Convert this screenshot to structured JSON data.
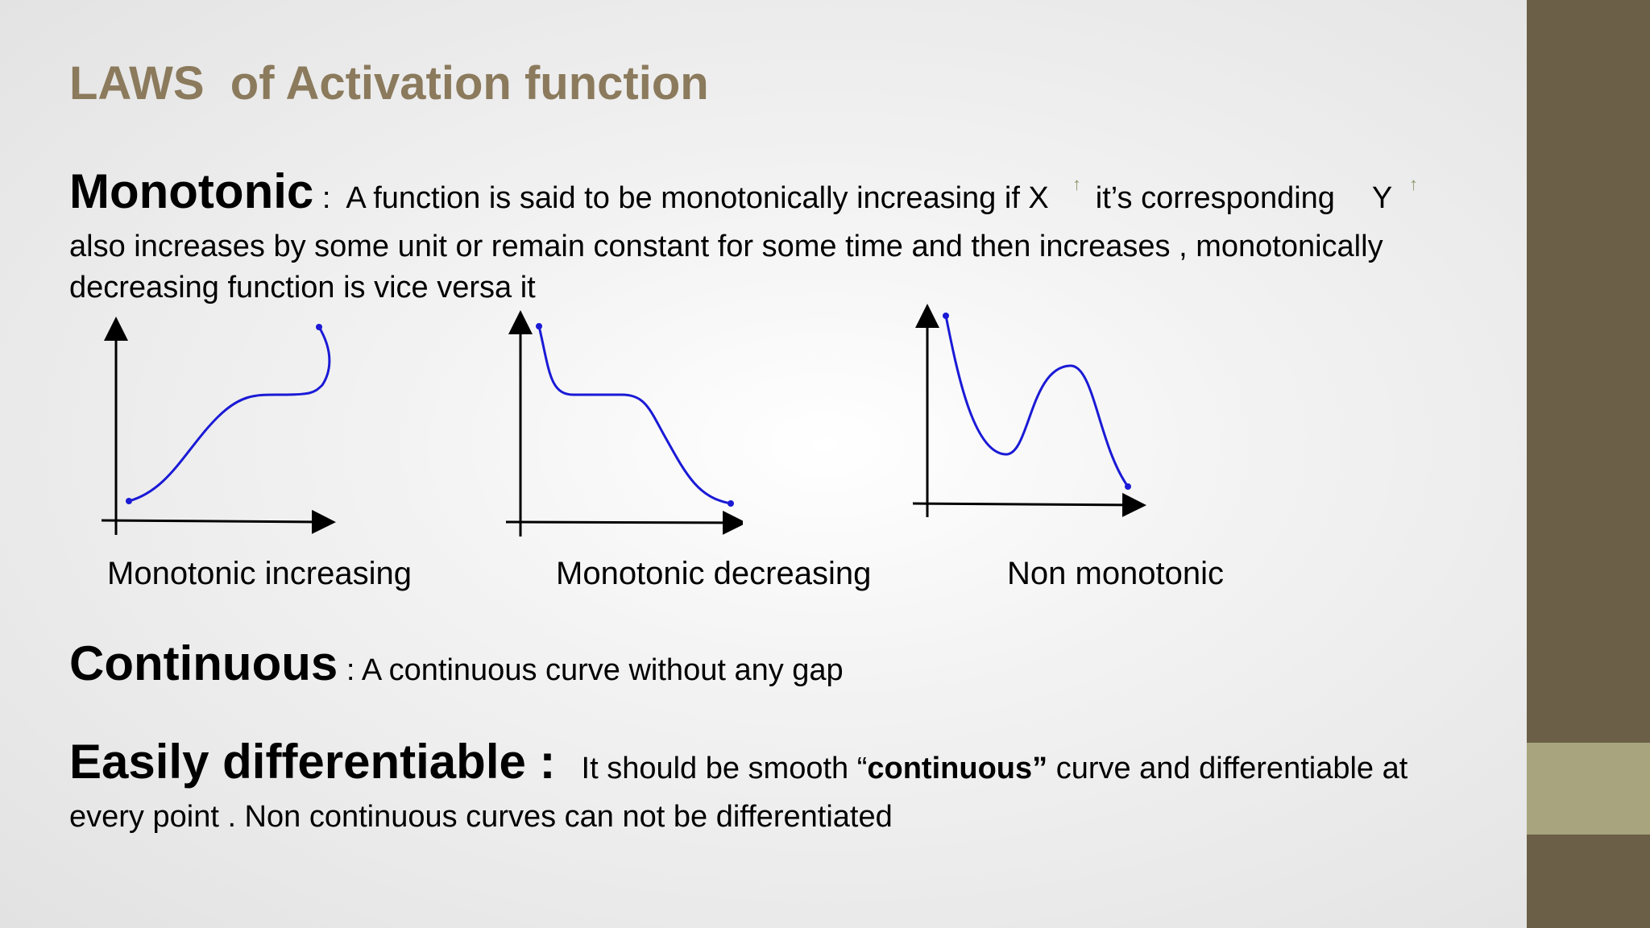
{
  "title": "LAWS  of Activation function",
  "monotonic": {
    "term": "Monotonic",
    "sep": " :  ",
    "line1_a": "A function is said to  be  monotonically increasing if X",
    "line1_b": "it’s corresponding",
    "line1_c": "Y",
    "line2": "also increases by some unit or remain constant for some time and then increases ,  monotonically",
    "line3": "decreasing function is vice versa it"
  },
  "graphs": [
    {
      "caption": "Monotonic increasing",
      "curve_color": "#1a1ad6"
    },
    {
      "caption": "Monotonic decreasing",
      "curve_color": "#1a1ad6"
    },
    {
      "caption": "Non monotonic",
      "curve_color": "#1a1ad6"
    }
  ],
  "continuous": {
    "term": "Continuous",
    "desc": " : A continuous curve without any gap"
  },
  "differentiable": {
    "term": "Easily differentiable :",
    "line1_a": "It should be smooth “",
    "line1_bold": "continuous”",
    "line1_b": " curve and differentiable at",
    "line2": "every point . Non continuous curves can not be differentiated"
  },
  "colors": {
    "title": "#8b7a5c",
    "side_bar": "#6b5f48",
    "side_accent": "#a8a47e"
  }
}
